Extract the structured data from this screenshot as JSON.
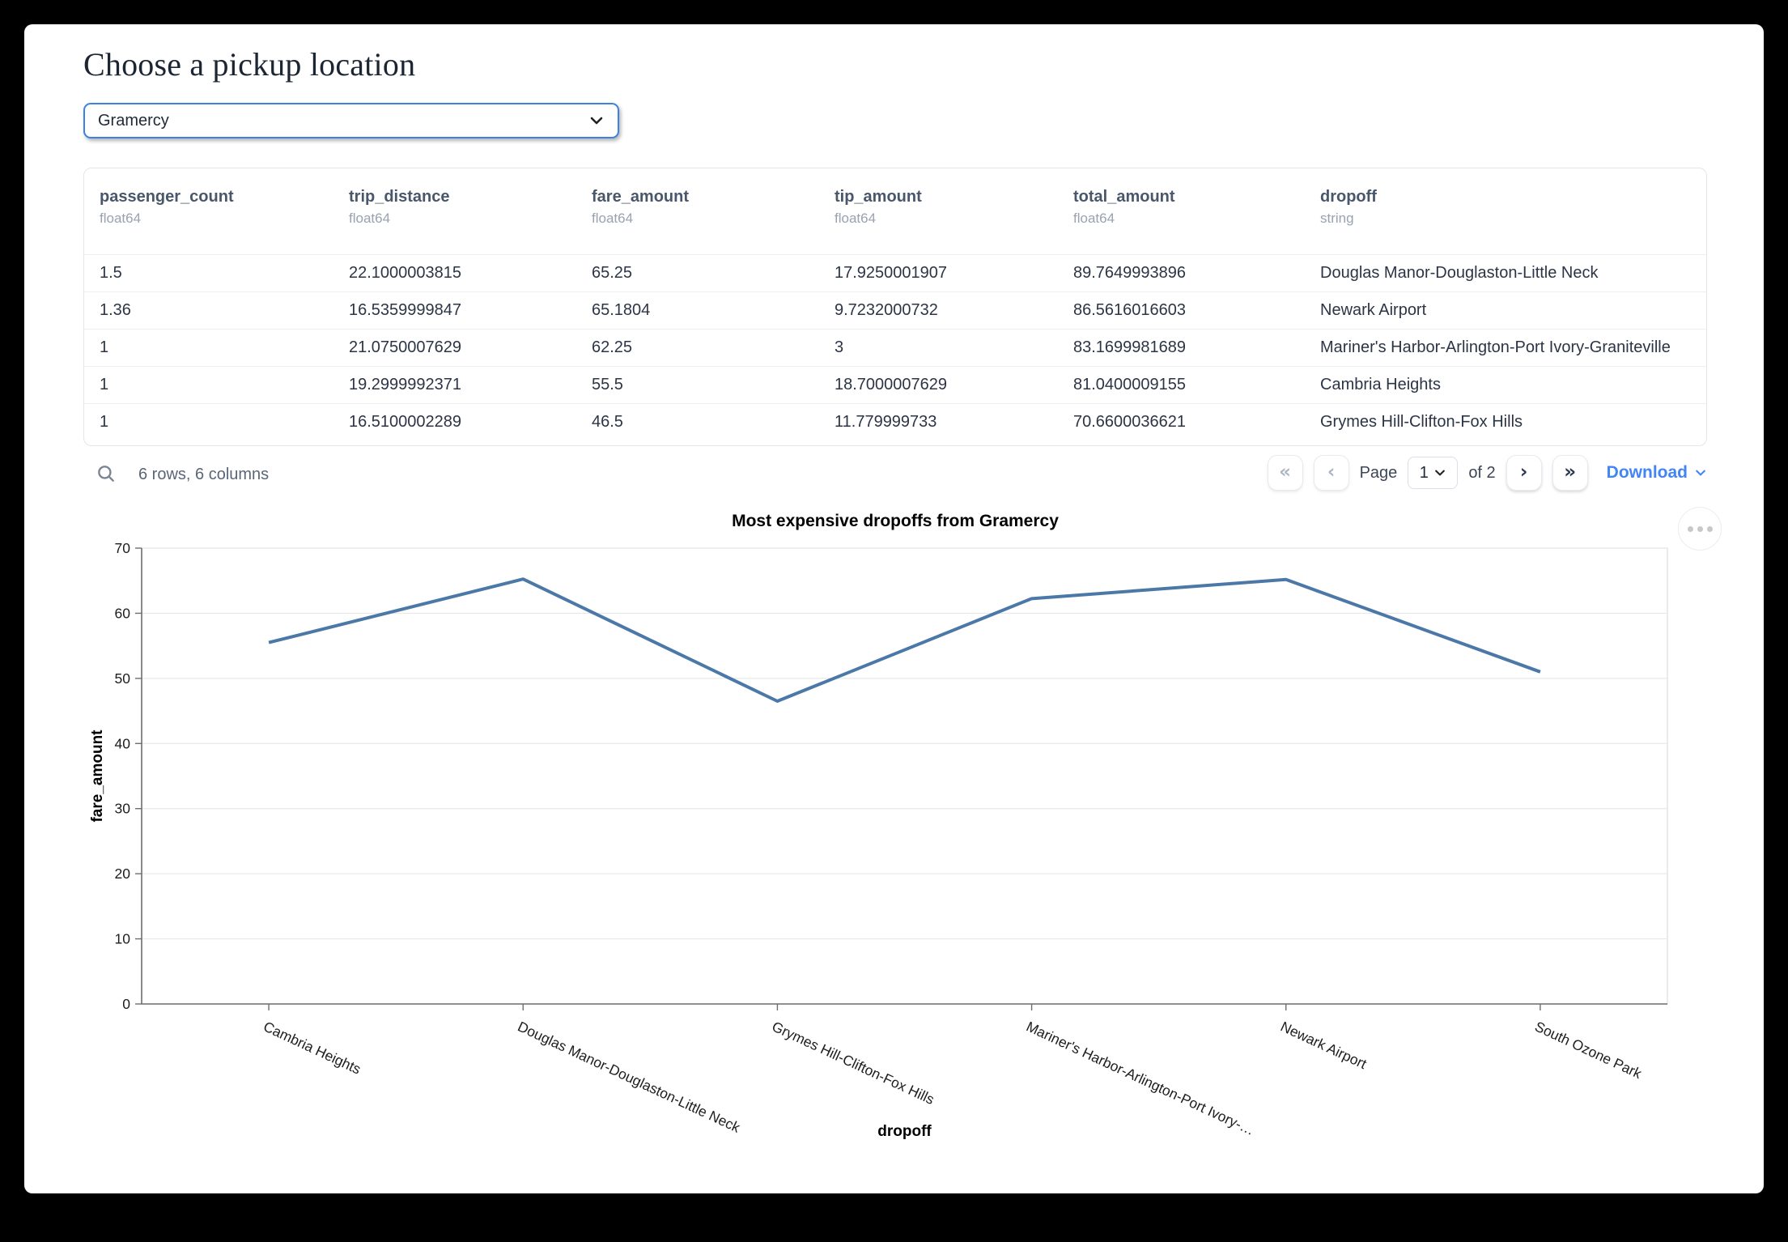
{
  "header": {
    "title": "Choose a pickup location"
  },
  "pickup_dropdown": {
    "value": "Gramercy"
  },
  "table": {
    "columns": [
      {
        "name": "passenger_count",
        "type": "float64"
      },
      {
        "name": "trip_distance",
        "type": "float64"
      },
      {
        "name": "fare_amount",
        "type": "float64"
      },
      {
        "name": "tip_amount",
        "type": "float64"
      },
      {
        "name": "total_amount",
        "type": "float64"
      },
      {
        "name": "dropoff",
        "type": "string"
      }
    ],
    "rows": [
      [
        "1.5",
        "22.1000003815",
        "65.25",
        "17.9250001907",
        "89.7649993896",
        "Douglas Manor-Douglaston-Little Neck"
      ],
      [
        "1.36",
        "16.5359999847",
        "65.1804",
        "9.7232000732",
        "86.5616016603",
        "Newark Airport"
      ],
      [
        "1",
        "21.0750007629",
        "62.25",
        "3",
        "83.1699981689",
        "Mariner's Harbor-Arlington-Port Ivory-Graniteville"
      ],
      [
        "1",
        "19.2999992371",
        "55.5",
        "18.7000007629",
        "81.0400009155",
        "Cambria Heights"
      ],
      [
        "1",
        "16.5100002289",
        "46.5",
        "11.779999733",
        "70.6600036621",
        "Grymes Hill-Clifton-Fox Hills"
      ]
    ],
    "summary": "6 rows, 6 columns"
  },
  "pagination": {
    "first_label": "«",
    "prev_label": "‹",
    "page_label": "Page",
    "current_page": "1",
    "of_label": "of 2",
    "next_label": "›",
    "last_label": "»",
    "download_label": "Download"
  },
  "colors": {
    "accent_blue": "#3c82e0",
    "link_blue": "#4285f4",
    "line_color": "#4c78a8"
  },
  "chart_data": {
    "type": "line",
    "title": "Most expensive dropoffs from Gramercy",
    "xlabel": "dropoff",
    "ylabel": "fare_amount",
    "categories": [
      "Cambria Heights",
      "Douglas Manor-Douglaston-Little Neck",
      "Grymes Hill-Clifton-Fox Hills",
      "Mariner's Harbor-Arlington-Port Ivory-Graniteville",
      "Newark Airport",
      "South Ozone Park"
    ],
    "x_tick_labels": [
      "Cambria Heights",
      "Douglas Manor-Douglaston-Little Neck",
      "Grymes Hill-Clifton-Fox Hills",
      "Mariner's Harbor-Arlington-Port Ivory-…",
      "Newark Airport",
      "South Ozone Park"
    ],
    "values": [
      55.5,
      65.25,
      46.5,
      62.25,
      65.1804,
      51
    ],
    "ylim": [
      0,
      70
    ],
    "yticks": [
      0,
      10,
      20,
      30,
      40,
      50,
      60,
      70
    ],
    "grid": true,
    "legend": "none",
    "line_color": "#4c78a8"
  }
}
